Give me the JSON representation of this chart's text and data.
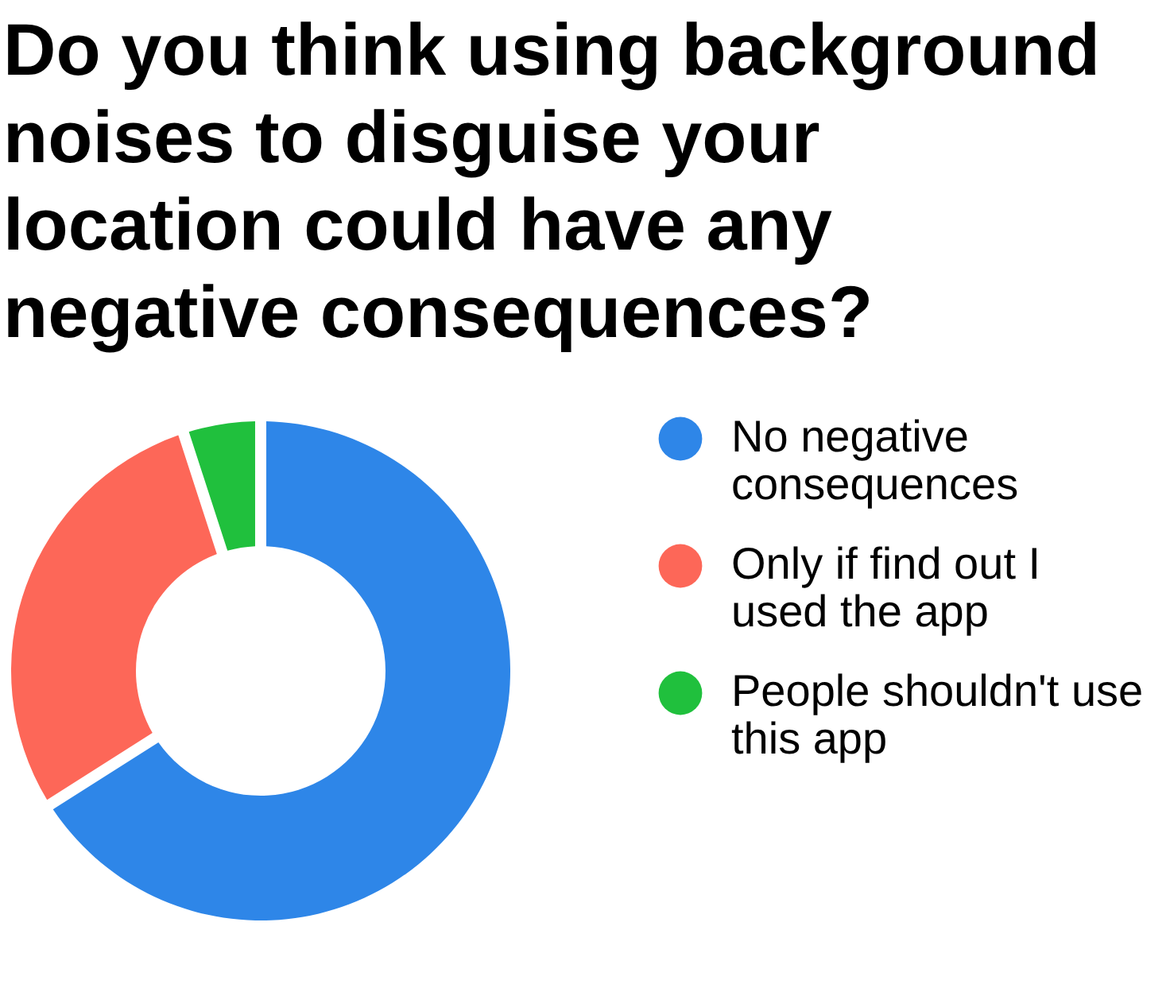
{
  "chart_data": {
    "type": "donut",
    "title": "Do you think using background noises to disguise your location could have any negative consequences?",
    "categories": [
      "No negative consequences",
      "Only if find out I used the app",
      "People shouldn't use this app"
    ],
    "values": [
      66,
      29,
      5
    ],
    "colors": [
      "#2e86e8",
      "#fd6758",
      "#20c03d"
    ],
    "legend": "right"
  }
}
